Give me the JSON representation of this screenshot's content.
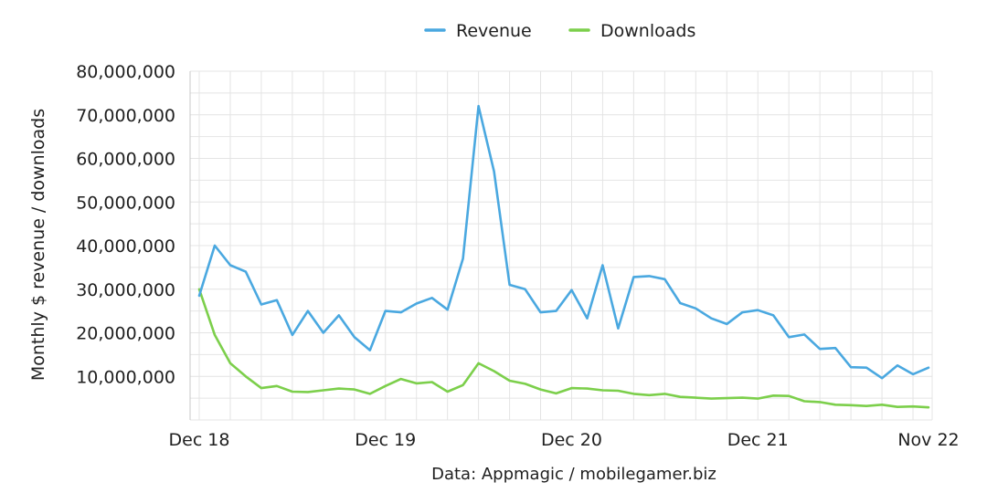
{
  "chart_data": {
    "type": "line",
    "ylabel": "Monthly $ revenue / downloads",
    "source": "Data: Appmagic / mobilegamer.biz",
    "ylim": [
      0,
      80000000
    ],
    "yticks": [
      {
        "value": 10000000,
        "label": "10,000,000"
      },
      {
        "value": 20000000,
        "label": "20,000,000"
      },
      {
        "value": 30000000,
        "label": "30,000,000"
      },
      {
        "value": 40000000,
        "label": "40,000,000"
      },
      {
        "value": 50000000,
        "label": "50,000,000"
      },
      {
        "value": 60000000,
        "label": "60,000,000"
      },
      {
        "value": 70000000,
        "label": "70,000,000"
      },
      {
        "value": 80000000,
        "label": "80,000,000"
      }
    ],
    "x": [
      "Dec 18",
      "Jan 19",
      "Feb 19",
      "Mar 19",
      "Apr 19",
      "May 19",
      "Jun 19",
      "Jul 19",
      "Aug 19",
      "Sep 19",
      "Oct 19",
      "Nov 19",
      "Dec 19",
      "Jan 20",
      "Feb 20",
      "Mar 20",
      "Apr 20",
      "May 20",
      "Jun 20",
      "Jul 20",
      "Aug 20",
      "Sep 20",
      "Oct 20",
      "Nov 20",
      "Dec 20",
      "Jan 21",
      "Feb 21",
      "Mar 21",
      "Apr 21",
      "May 21",
      "Jun 21",
      "Jul 21",
      "Aug 21",
      "Sep 21",
      "Oct 21",
      "Nov 21",
      "Dec 21",
      "Jan 22",
      "Feb 22",
      "Mar 22",
      "Apr 22",
      "May 22",
      "Jun 22",
      "Jul 22",
      "Aug 22",
      "Sep 22",
      "Oct 22",
      "Nov 22"
    ],
    "xticks": [
      {
        "value": "Dec 18",
        "label": "Dec 18"
      },
      {
        "value": "Dec 19",
        "label": "Dec 19"
      },
      {
        "value": "Dec 20",
        "label": "Dec 20"
      },
      {
        "value": "Dec 21",
        "label": "Dec 21"
      },
      {
        "value": "Nov 22",
        "label": "Nov 22"
      }
    ],
    "grid": true,
    "legend_position": "top-center",
    "series": [
      {
        "name": "Revenue",
        "color": "#4aa8e0",
        "values": [
          28500000,
          40000000,
          35500000,
          34000000,
          26500000,
          27500000,
          19500000,
          25000000,
          20000000,
          24000000,
          19000000,
          16000000,
          25000000,
          24700000,
          26700000,
          28000000,
          25300000,
          37000000,
          72000000,
          57000000,
          31000000,
          30000000,
          24700000,
          25000000,
          29800000,
          23300000,
          35500000,
          21000000,
          32800000,
          33000000,
          32300000,
          26800000,
          25600000,
          23300000,
          22000000,
          24700000,
          25200000,
          24000000,
          19000000,
          19600000,
          16300000,
          16500000,
          12100000,
          12000000,
          9600000,
          12500000,
          10500000,
          12000000
        ]
      },
      {
        "name": "Downloads",
        "color": "#7ccf4b",
        "values": [
          30000000,
          19500000,
          13000000,
          10000000,
          7300000,
          7800000,
          6500000,
          6400000,
          6800000,
          7200000,
          7000000,
          6000000,
          7800000,
          9400000,
          8400000,
          8700000,
          6500000,
          8000000,
          13000000,
          11200000,
          9000000,
          8300000,
          7000000,
          6100000,
          7300000,
          7200000,
          6800000,
          6700000,
          6000000,
          5700000,
          6000000,
          5300000,
          5100000,
          4900000,
          5000000,
          5100000,
          4900000,
          5600000,
          5500000,
          4300000,
          4100000,
          3500000,
          3400000,
          3200000,
          3500000,
          3000000,
          3100000,
          2900000
        ]
      }
    ]
  }
}
